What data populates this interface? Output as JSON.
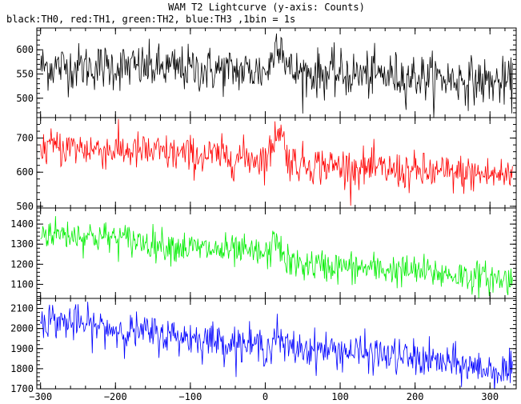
{
  "chart_data": {
    "type": "line",
    "title": "WAM T2 Lightcurve (y-axis: Counts)",
    "subtitle": "black:TH0, red:TH1, green:TH2, blue:TH3 ,1bin = 1s",
    "xlim": [
      -305,
      335
    ],
    "xticks": [
      -300,
      -200,
      -100,
      0,
      100,
      200,
      300
    ],
    "x_step": 1,
    "panels": [
      {
        "color": "#000000",
        "ylim": [
          460,
          645
        ],
        "yticks": [
          500,
          550,
          600
        ],
        "trend": [
          [
            -300,
            565
          ],
          [
            -200,
            565
          ],
          [
            -100,
            560
          ],
          [
            0,
            555
          ],
          [
            50,
            552
          ],
          [
            200,
            545
          ],
          [
            330,
            530
          ]
        ],
        "bumps": [
          {
            "center": 18,
            "width": 9,
            "amp": 70
          }
        ],
        "noise": 24
      },
      {
        "color": "#ff0000",
        "ylim": [
          495,
          760
        ],
        "yticks": [
          500,
          600,
          700
        ],
        "trend": [
          [
            -300,
            675
          ],
          [
            -200,
            665
          ],
          [
            -100,
            650
          ],
          [
            0,
            640
          ],
          [
            50,
            625
          ],
          [
            200,
            600
          ],
          [
            330,
            590
          ]
        ],
        "bumps": [
          {
            "center": 18,
            "width": 9,
            "amp": 95
          }
        ],
        "noise": 28
      },
      {
        "color": "#00ee00",
        "ylim": [
          1030,
          1480
        ],
        "yticks": [
          1100,
          1200,
          1300,
          1400
        ],
        "trend": [
          [
            -300,
            1360
          ],
          [
            -200,
            1330
          ],
          [
            -100,
            1280
          ],
          [
            0,
            1250
          ],
          [
            40,
            1200
          ],
          [
            200,
            1165
          ],
          [
            330,
            1120
          ]
        ],
        "bumps": [
          {
            "center": 15,
            "width": 6,
            "amp": 110
          }
        ],
        "noise": 40
      },
      {
        "color": "#0000ff",
        "ylim": [
          1700,
          2150
        ],
        "yticks": [
          1700,
          1800,
          1900,
          2000,
          2100
        ],
        "trend": [
          [
            -300,
            2050
          ],
          [
            -200,
            1995
          ],
          [
            -100,
            1955
          ],
          [
            0,
            1910
          ],
          [
            100,
            1890
          ],
          [
            200,
            1850
          ],
          [
            330,
            1780
          ]
        ],
        "bumps": [
          {
            "center": 15,
            "width": 5,
            "amp": 70
          }
        ],
        "noise": 45
      }
    ]
  }
}
